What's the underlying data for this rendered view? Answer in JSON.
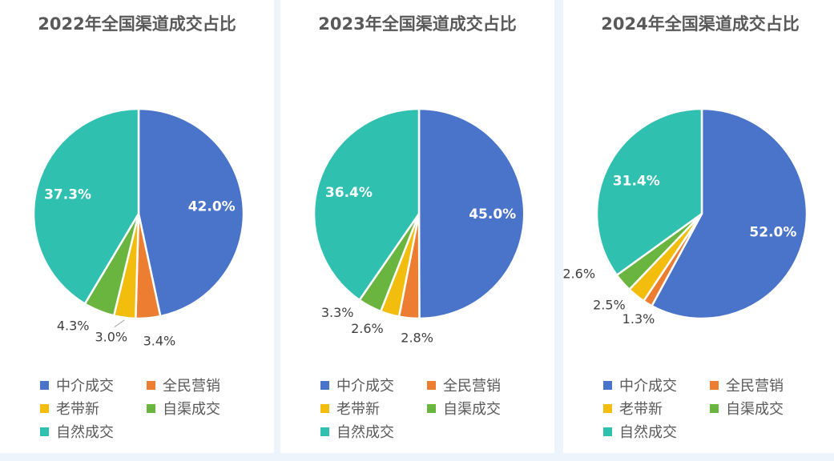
{
  "colors": {
    "中介成交": "#4a74c9",
    "全民营销": "#ed7d31",
    "老带新": "#f2bd0c",
    "自渠成交": "#6ab540",
    "自然成交": "#30c0b0"
  },
  "chart_data": [
    {
      "type": "pie",
      "title": "2022年全国渠道成交占比",
      "categories": [
        "中介成交",
        "全民营销",
        "老带新",
        "自渠成交",
        "自然成交"
      ],
      "values": [
        42.0,
        3.4,
        3.0,
        4.3,
        37.3
      ],
      "labels": [
        "42.0%",
        "3.4%",
        "3.0%",
        "4.3%",
        "37.3%"
      ],
      "legend": "bottom"
    },
    {
      "type": "pie",
      "title": "2023年全国渠道成交占比",
      "categories": [
        "中介成交",
        "全民营销",
        "老带新",
        "自渠成交",
        "自然成交"
      ],
      "values": [
        45.0,
        2.8,
        2.6,
        3.3,
        36.4
      ],
      "labels": [
        "45.0%",
        "2.8%",
        "2.6%",
        "3.3%",
        "36.4%"
      ],
      "legend": "bottom"
    },
    {
      "type": "pie",
      "title": "2024年全国渠道成交占比",
      "categories": [
        "中介成交",
        "全民营销",
        "老带新",
        "自渠成交",
        "自然成交"
      ],
      "values": [
        52.0,
        1.3,
        2.5,
        2.6,
        31.4
      ],
      "labels": [
        "52.0%",
        "1.3%",
        "2.5%",
        "2.6%",
        "31.4%"
      ],
      "legend": "bottom"
    }
  ]
}
